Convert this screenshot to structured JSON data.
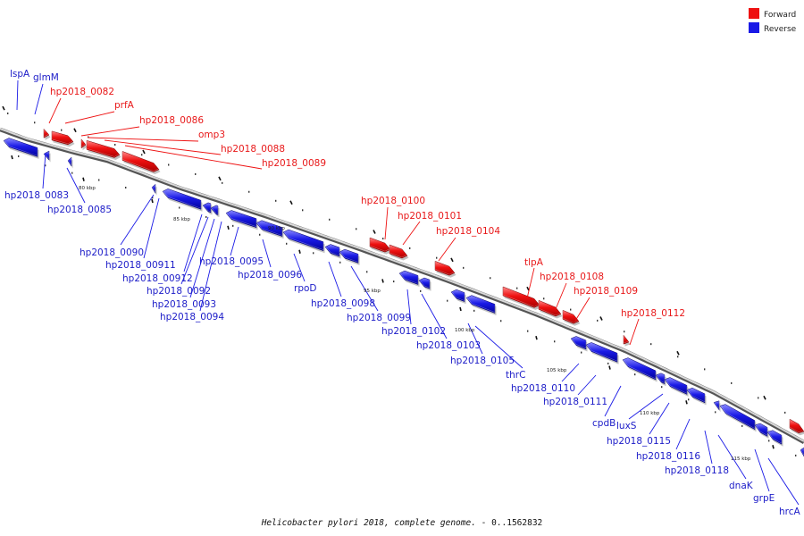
{
  "legend": {
    "forward": {
      "label": "Forward",
      "color": "#ee1111"
    },
    "reverse": {
      "label": "Reverse",
      "color": "#1a1ae6"
    }
  },
  "caption": {
    "organism": "Helicobacter pylori 2018, complete genome.",
    "range": " - 0..1562832"
  },
  "scale_marks": [
    "80 kbp",
    "85 kbp",
    "90 kbp",
    "95 kbp",
    "100 kbp",
    "105 kbp",
    "110 kbp",
    "115 kbp"
  ],
  "forward_genes": [
    "hp2018_0082",
    "prfA",
    "hp2018_0086",
    "omp3",
    "hp2018_0088",
    "hp2018_0089",
    "hp2018_0100",
    "hp2018_0101",
    "hp2018_0104",
    "tlpA",
    "hp2018_0108",
    "hp2018_0109",
    "hp2018_0112"
  ],
  "reverse_genes_top": [
    "lspA",
    "glmM"
  ],
  "reverse_genes": [
    "hp2018_0083",
    "hp2018_0085",
    "hp2018_0090",
    "hp2018_00911",
    "hp2018_00912",
    "hp2018_0092",
    "hp2018_0093",
    "hp2018_0094",
    "hp2018_0095",
    "hp2018_0096",
    "rpoD",
    "hp2018_0098",
    "hp2018_0099",
    "hp2018_0102",
    "hp2018_0103",
    "hp2018_0105",
    "thrC",
    "hp2018_0110",
    "hp2018_0111",
    "cpdB",
    "luxS",
    "hp2018_0115",
    "hp2018_0116",
    "hp2018_0118",
    "dnaK",
    "grpE",
    "hrcA"
  ]
}
